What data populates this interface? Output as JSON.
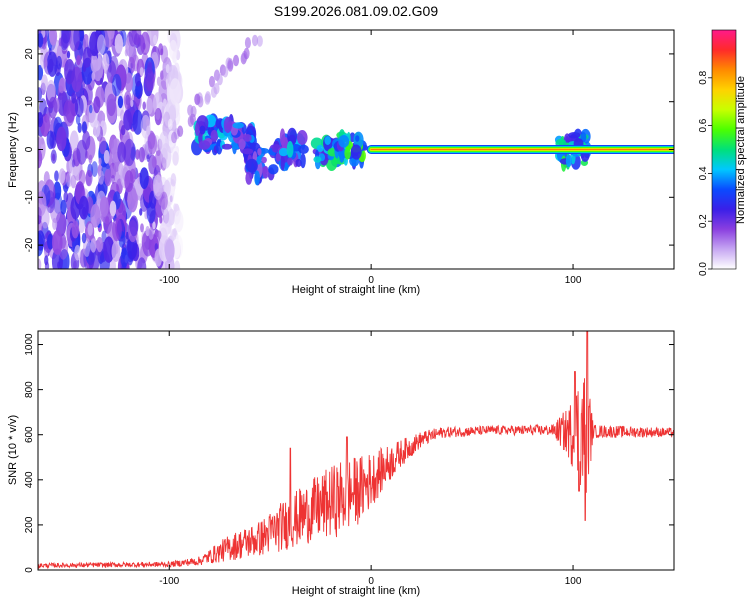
{
  "title": "S199.2026.081.09.02.G09",
  "chart_data": [
    {
      "type": "heatmap",
      "name": "spectrogram",
      "xlabel": "Height of straight line (km)",
      "ylabel": "Frequency (Hz)",
      "xlim": [
        -165,
        150
      ],
      "ylim": [
        -25,
        25
      ],
      "xticks": [
        -100,
        0,
        100
      ],
      "xtick_labels": [
        "-100",
        "0",
        "100"
      ],
      "yticks": [
        -20,
        -10,
        0,
        10,
        20
      ],
      "ytick_labels": [
        "-20",
        "-10",
        "0",
        "10",
        "20"
      ],
      "colorbar": {
        "label": "Normalized spectral amplitude",
        "range": [
          0,
          1
        ],
        "ticks": [
          0.0,
          0.2,
          0.4,
          0.6,
          0.8
        ],
        "tick_labels": [
          "0.0",
          "0.2",
          "0.4",
          "0.6",
          "0.8"
        ],
        "colors": [
          "#ffffff",
          "#c6a6f2",
          "#8a3fe0",
          "#3a1fe8",
          "#0a4bff",
          "#00c8ff",
          "#00e07a",
          "#4cff00",
          "#c8ff00",
          "#ffd200",
          "#ff8a00",
          "#ff2a2a",
          "#ff1a8a"
        ]
      },
      "features": {
        "carrier_line": {
          "x_start": 0,
          "x_end": 150,
          "frequency": 0,
          "amplitude": 0.85
        },
        "noise_region": {
          "x_start": -165,
          "x_end": -95,
          "amplitude": 0.25
        },
        "clusters": [
          {
            "x": -80,
            "y": 3,
            "amplitude": 0.45
          },
          {
            "x": -65,
            "y": 3,
            "amplitude": 0.4
          },
          {
            "x": -55,
            "y": -3,
            "amplitude": 0.4
          },
          {
            "x": -40,
            "y": 0,
            "amplitude": 0.45
          },
          {
            "x": -20,
            "y": 0,
            "amplitude": 0.55
          },
          {
            "x": -10,
            "y": 0,
            "amplitude": 0.6
          },
          {
            "x": 100,
            "y": 0,
            "amplitude": 0.6
          }
        ]
      }
    },
    {
      "type": "line",
      "name": "snr",
      "xlabel": "Height of straight line (km)",
      "ylabel": "SNR (10 * v/v)",
      "xlim": [
        -165,
        150
      ],
      "ylim": [
        0,
        1060
      ],
      "xticks": [
        -100,
        0,
        100
      ],
      "xtick_labels": [
        "-100",
        "0",
        "100"
      ],
      "yticks": [
        0,
        200,
        400,
        600,
        800,
        1000
      ],
      "ytick_labels": [
        "0",
        "200",
        "400",
        "600",
        "800",
        "1000"
      ],
      "color": "#ee3333",
      "profile": [
        {
          "x": -165,
          "y": 20,
          "noise": 10
        },
        {
          "x": -100,
          "y": 25,
          "noise": 12
        },
        {
          "x": -85,
          "y": 40,
          "noise": 20
        },
        {
          "x": -70,
          "y": 100,
          "noise": 60
        },
        {
          "x": -55,
          "y": 140,
          "noise": 80
        },
        {
          "x": -45,
          "y": 190,
          "noise": 110
        },
        {
          "x": -30,
          "y": 260,
          "noise": 140
        },
        {
          "x": -15,
          "y": 320,
          "noise": 170
        },
        {
          "x": -5,
          "y": 360,
          "noise": 150
        },
        {
          "x": 5,
          "y": 440,
          "noise": 100
        },
        {
          "x": 15,
          "y": 520,
          "noise": 60
        },
        {
          "x": 25,
          "y": 580,
          "noise": 35
        },
        {
          "x": 35,
          "y": 610,
          "noise": 25
        },
        {
          "x": 60,
          "y": 620,
          "noise": 20
        },
        {
          "x": 90,
          "y": 620,
          "noise": 25
        },
        {
          "x": 98,
          "y": 610,
          "noise": 120
        },
        {
          "x": 103,
          "y": 620,
          "noise": 250
        },
        {
          "x": 107,
          "y": 620,
          "noise": 300
        },
        {
          "x": 110,
          "y": 615,
          "noise": 30
        },
        {
          "x": 150,
          "y": 610,
          "noise": 20
        }
      ],
      "peaks": [
        {
          "x": -40,
          "y": 540
        },
        {
          "x": -12,
          "y": 590
        },
        {
          "x": 101,
          "y": 880
        },
        {
          "x": 107,
          "y": 1060
        },
        {
          "x": 106,
          "y": 220
        },
        {
          "x": 103,
          "y": 350
        }
      ]
    }
  ]
}
